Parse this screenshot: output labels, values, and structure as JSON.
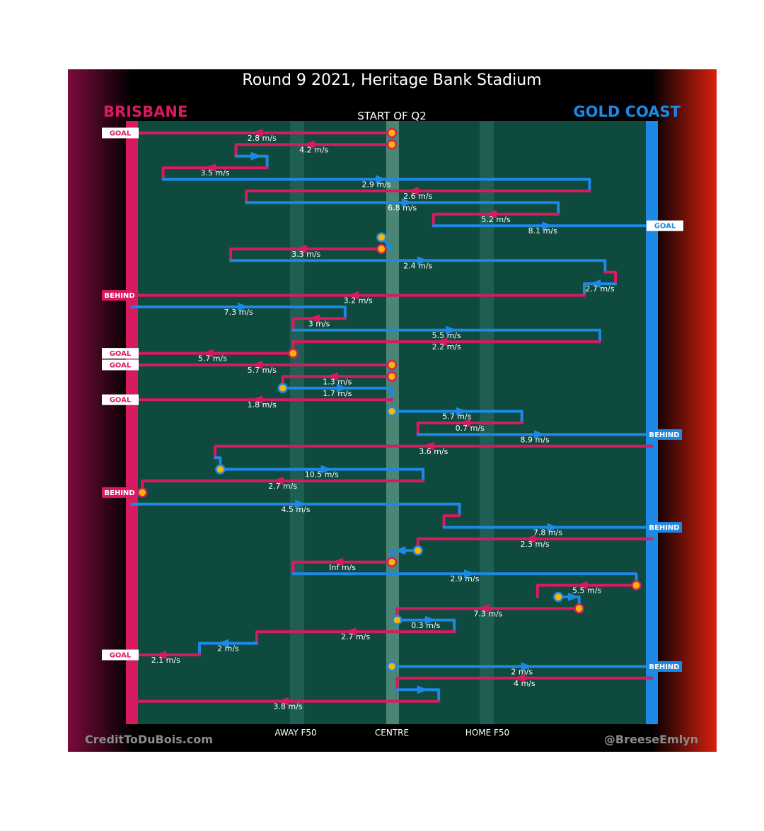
{
  "header": {
    "title": "Round 9 2021, Heritage Bank Stadium",
    "subtitle": "START OF Q2",
    "team_left": "BRISBANE",
    "team_right": "GOLD COAST"
  },
  "footer": {
    "left_credit": "CreditToDuBois.com",
    "right_credit": "@BreeseEmlyn",
    "axis_labels": [
      "AWAY F50",
      "CENTRE",
      "HOME F50"
    ]
  },
  "colors": {
    "brisbane": "#d81b60",
    "gold_coast": "#1e88e5",
    "field": "#0f4a3e",
    "marker": "#f5b700"
  },
  "chart_data": {
    "type": "line",
    "title": "Round 9 2021, Heritage Bank Stadium",
    "subtitle": "START OF Q2",
    "xlabel": "",
    "ylabel": "",
    "x_ticks": [
      "AWAY F50",
      "CENTRE",
      "HOME F50"
    ],
    "x_range": [
      0,
      100
    ],
    "series": [
      {
        "name": "BRISBANE",
        "color": "#d81b60"
      },
      {
        "name": "GOLD COAST",
        "color": "#1e88e5"
      }
    ],
    "chains": [
      {
        "team": "BRISBANE",
        "x": [
          50,
          0
        ],
        "speed": "2.8 m/s",
        "outcome": "GOAL",
        "start": "marker"
      },
      {
        "team": "BRISBANE",
        "x": [
          50,
          20,
          20
        ],
        "speed": "4.2 m/s",
        "start": "marker"
      },
      {
        "team": "GOLD COAST",
        "x": [
          20,
          26,
          26
        ]
      },
      {
        "team": "BRISBANE",
        "x": [
          26,
          6,
          6
        ],
        "speed": "3.5 m/s"
      },
      {
        "team": "GOLD COAST",
        "x": [
          6,
          88,
          88
        ],
        "speed": "2.9 m/s"
      },
      {
        "team": "BRISBANE",
        "x": [
          88,
          22,
          22
        ],
        "speed": "2.6 m/s"
      },
      {
        "team": "GOLD COAST",
        "x": [
          22,
          82,
          82
        ],
        "speed": "6.8 m/s"
      },
      {
        "team": "BRISBANE",
        "x": [
          82,
          58,
          58
        ],
        "speed": "5.2 m/s"
      },
      {
        "team": "GOLD COAST",
        "x": [
          58,
          100
        ],
        "speed": "8.1 m/s",
        "outcome": "GOAL"
      },
      {
        "team": "GOLD COAST",
        "x": [
          48,
          48,
          50
        ],
        "start": "marker"
      },
      {
        "team": "BRISBANE",
        "x": [
          48,
          19,
          19
        ],
        "speed": "3.3 m/s",
        "start": "marker"
      },
      {
        "team": "GOLD COAST",
        "x": [
          19,
          91,
          91
        ],
        "speed": "2.4 m/s"
      },
      {
        "team": "BRISBANE",
        "x": [
          91,
          93,
          93
        ]
      },
      {
        "team": "GOLD COAST",
        "x": [
          93,
          87,
          87
        ],
        "speed": "2.7 m/s"
      },
      {
        "team": "BRISBANE",
        "x": [
          87,
          0
        ],
        "speed": "3.2 m/s",
        "outcome": "BEHIND"
      },
      {
        "team": "GOLD COAST",
        "x": [
          0,
          41,
          41
        ],
        "speed": "7.3 m/s"
      },
      {
        "team": "BRISBANE",
        "x": [
          41,
          31,
          31
        ],
        "speed": "3 m/s"
      },
      {
        "team": "GOLD COAST",
        "x": [
          31,
          90,
          90
        ],
        "speed": "5.5 m/s"
      },
      {
        "team": "BRISBANE",
        "x": [
          90,
          31,
          31
        ],
        "speed": "2.2 m/s"
      },
      {
        "team": "BRISBANE",
        "x": [
          31,
          0
        ],
        "speed": "5.7 m/s",
        "outcome": "GOAL",
        "start": "marker"
      },
      {
        "team": "BRISBANE",
        "x": [
          50,
          0
        ],
        "speed": "5.7 m/s",
        "outcome": "GOAL",
        "start": "marker"
      },
      {
        "team": "BRISBANE",
        "x": [
          50,
          29,
          29
        ],
        "speed": "1.3 m/s",
        "start": "marker"
      },
      {
        "team": "GOLD COAST",
        "x": [
          29,
          50,
          50
        ],
        "speed": "1.7 m/s",
        "start": "marker"
      },
      {
        "team": "BRISBANE",
        "x": [
          50,
          0
        ],
        "speed": "1.8 m/s",
        "outcome": "GOAL"
      },
      {
        "team": "GOLD COAST",
        "x": [
          50,
          75,
          75
        ],
        "speed": "5.7 m/s",
        "start": "marker"
      },
      {
        "team": "BRISBANE",
        "x": [
          75,
          55,
          55
        ],
        "speed": "0.7 m/s"
      },
      {
        "team": "GOLD COAST",
        "x": [
          55,
          100
        ],
        "speed": "8.9 m/s",
        "outcome": "BEHIND"
      },
      {
        "team": "BRISBANE",
        "x": [
          100,
          16,
          16
        ],
        "speed": "3.6 m/s"
      },
      {
        "team": "GOLD COAST",
        "x": [
          16,
          17,
          17
        ]
      },
      {
        "team": "GOLD COAST",
        "x": [
          17,
          56,
          56
        ],
        "speed": "10.5 m/s",
        "start": "marker"
      },
      {
        "team": "BRISBANE",
        "x": [
          56,
          2,
          2
        ],
        "speed": "2.7 m/s"
      },
      {
        "team": "BRISBANE",
        "x": [
          2,
          0
        ],
        "outcome": "BEHIND",
        "start": "marker"
      },
      {
        "team": "GOLD COAST",
        "x": [
          0,
          63,
          63
        ],
        "speed": "4.5 m/s"
      },
      {
        "team": "BRISBANE",
        "x": [
          63,
          60,
          60
        ]
      },
      {
        "team": "GOLD COAST",
        "x": [
          60,
          100
        ],
        "speed": "7.8 m/s",
        "outcome": "BEHIND"
      },
      {
        "team": "BRISBANE",
        "x": [
          100,
          55,
          55
        ],
        "speed": "2.3 m/s"
      },
      {
        "team": "GOLD COAST",
        "x": [
          55,
          50,
          50
        ],
        "start": "marker"
      },
      {
        "team": "BRISBANE",
        "x": [
          50,
          31,
          31
        ],
        "speed": "Inf m/s",
        "start": "marker"
      },
      {
        "team": "GOLD COAST",
        "x": [
          31,
          97,
          97
        ],
        "speed": "2.9 m/s"
      },
      {
        "team": "BRISBANE",
        "x": [
          97,
          78,
          78
        ],
        "speed": "5.5 m/s",
        "start": "marker"
      },
      {
        "team": "GOLD COAST",
        "x": [
          82,
          86,
          86
        ],
        "start": "marker"
      },
      {
        "team": "BRISBANE",
        "x": [
          86,
          51,
          51
        ],
        "speed": "7.3 m/s",
        "start": "marker"
      },
      {
        "team": "GOLD COAST",
        "x": [
          51,
          62,
          62
        ],
        "speed": "0.3 m/s",
        "start": "marker"
      },
      {
        "team": "BRISBANE",
        "x": [
          62,
          24,
          24
        ],
        "speed": "2.7 m/s"
      },
      {
        "team": "GOLD COAST",
        "x": [
          24,
          13,
          13
        ],
        "speed": "2 m/s"
      },
      {
        "team": "BRISBANE",
        "x": [
          13,
          0
        ],
        "speed": "2.1 m/s",
        "outcome": "GOAL"
      },
      {
        "team": "GOLD COAST",
        "x": [
          50,
          100
        ],
        "speed": "2 m/s",
        "outcome": "BEHIND",
        "start": "marker"
      },
      {
        "team": "BRISBANE",
        "x": [
          100,
          51,
          51
        ],
        "speed": "4 m/s"
      },
      {
        "team": "GOLD COAST",
        "x": [
          51,
          59,
          59
        ]
      },
      {
        "team": "BRISBANE",
        "x": [
          59,
          1
        ],
        "speed": "3.8 m/s"
      }
    ]
  }
}
